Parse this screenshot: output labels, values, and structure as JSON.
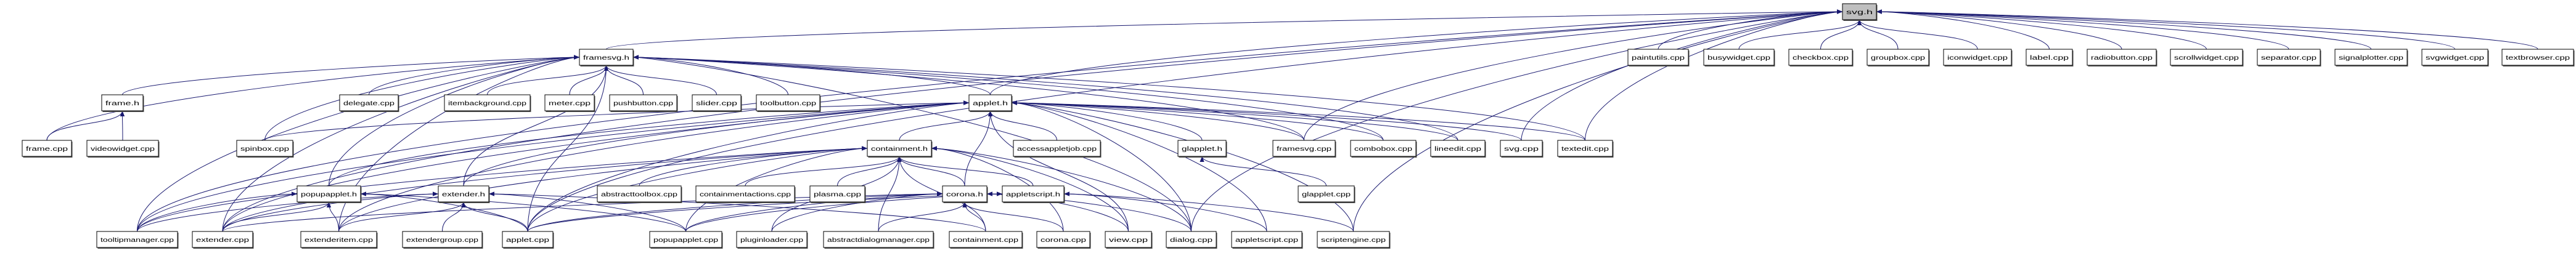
{
  "graph": {
    "type": "include-dependency-graph",
    "edge_color": "#191970",
    "highlight_fill": "#bfbfbf",
    "highlighted_node": "svg.h",
    "nodes": [
      "svg.h",
      "framesvg.h",
      "paintutils.cpp",
      "busywidget.cpp",
      "checkbox.cpp",
      "groupbox.cpp",
      "iconwidget.cpp",
      "label.cpp",
      "radiobutton.cpp",
      "scrollwidget.cpp",
      "separator.cpp",
      "signalplotter.cpp",
      "svgwidget.cpp",
      "textbrowser.cpp",
      "frame.h",
      "delegate.cpp",
      "itembackground.cpp",
      "meter.cpp",
      "pushbutton.cpp",
      "slider.cpp",
      "toolbutton.cpp",
      "applet.h",
      "frame.cpp",
      "videowidget.cpp",
      "spinbox.cpp",
      "containment.h",
      "accessappletjob.cpp",
      "glapplet.h",
      "framesvg.cpp",
      "combobox.cpp",
      "lineedit.cpp",
      "svg.cpp",
      "textedit.cpp",
      "popupapplet.h",
      "extender.h",
      "abstracttoolbox.cpp",
      "containmentactions.cpp",
      "plasma.cpp",
      "corona.h",
      "appletscript.h",
      "glapplet.cpp",
      "tooltipmanager.cpp",
      "extender.cpp",
      "extenderitem.cpp",
      "extendergroup.cpp",
      "applet.cpp",
      "popupapplet.cpp",
      "pluginloader.cpp",
      "abstractdialogmanager.cpp",
      "containment.cpp",
      "corona.cpp",
      "view.cpp",
      "dialog.cpp",
      "appletscript.cpp",
      "scriptengine.cpp"
    ],
    "edges": [
      [
        "framesvg.h",
        "svg.h"
      ],
      [
        "paintutils.cpp",
        "svg.h"
      ],
      [
        "busywidget.cpp",
        "svg.h"
      ],
      [
        "checkbox.cpp",
        "svg.h"
      ],
      [
        "groupbox.cpp",
        "svg.h"
      ],
      [
        "iconwidget.cpp",
        "svg.h"
      ],
      [
        "label.cpp",
        "svg.h"
      ],
      [
        "radiobutton.cpp",
        "svg.h"
      ],
      [
        "scrollwidget.cpp",
        "svg.h"
      ],
      [
        "separator.cpp",
        "svg.h"
      ],
      [
        "signalplotter.cpp",
        "svg.h"
      ],
      [
        "svgwidget.cpp",
        "svg.h"
      ],
      [
        "textbrowser.cpp",
        "svg.h"
      ],
      [
        "applet.h",
        "svg.h"
      ],
      [
        "svg.cpp",
        "svg.h"
      ],
      [
        "textedit.cpp",
        "svg.h"
      ],
      [
        "dialog.cpp",
        "svg.h"
      ],
      [
        "tooltipmanager.cpp",
        "svg.h"
      ],
      [
        "extender.cpp",
        "svg.h"
      ],
      [
        "applet.cpp",
        "svg.h"
      ],
      [
        "scriptengine.cpp",
        "svg.h"
      ],
      [
        "framesvg.cpp",
        "svg.h"
      ],
      [
        "frame.h",
        "framesvg.h"
      ],
      [
        "delegate.cpp",
        "framesvg.h"
      ],
      [
        "itembackground.cpp",
        "framesvg.h"
      ],
      [
        "meter.cpp",
        "framesvg.h"
      ],
      [
        "pushbutton.cpp",
        "framesvg.h"
      ],
      [
        "slider.cpp",
        "framesvg.h"
      ],
      [
        "toolbutton.cpp",
        "framesvg.h"
      ],
      [
        "frame.cpp",
        "framesvg.h"
      ],
      [
        "spinbox.cpp",
        "framesvg.h"
      ],
      [
        "tooltipmanager.cpp",
        "framesvg.h"
      ],
      [
        "extender.cpp",
        "framesvg.h"
      ],
      [
        "extenderitem.cpp",
        "framesvg.h"
      ],
      [
        "applet.h",
        "framesvg.h"
      ],
      [
        "framesvg.cpp",
        "framesvg.h"
      ],
      [
        "combobox.cpp",
        "framesvg.h"
      ],
      [
        "lineedit.cpp",
        "framesvg.h"
      ],
      [
        "textedit.cpp",
        "framesvg.h"
      ],
      [
        "applet.cpp",
        "framesvg.h"
      ],
      [
        "extender.h",
        "framesvg.h"
      ],
      [
        "popupapplet.h",
        "framesvg.h"
      ],
      [
        "dialog.cpp",
        "framesvg.h"
      ],
      [
        "frame.cpp",
        "frame.h"
      ],
      [
        "videowidget.cpp",
        "frame.h"
      ],
      [
        "containment.h",
        "applet.h"
      ],
      [
        "accessappletjob.cpp",
        "applet.h"
      ],
      [
        "glapplet.h",
        "applet.h"
      ],
      [
        "framesvg.cpp",
        "applet.h"
      ],
      [
        "combobox.cpp",
        "applet.h"
      ],
      [
        "lineedit.cpp",
        "applet.h"
      ],
      [
        "svg.cpp",
        "applet.h"
      ],
      [
        "textedit.cpp",
        "applet.h"
      ],
      [
        "corona.h",
        "applet.h"
      ],
      [
        "spinbox.cpp",
        "applet.h"
      ],
      [
        "tooltipmanager.cpp",
        "applet.h"
      ],
      [
        "extender.cpp",
        "applet.h"
      ],
      [
        "extenderitem.cpp",
        "applet.h"
      ],
      [
        "applet.cpp",
        "applet.h"
      ],
      [
        "popupapplet.h",
        "applet.h"
      ],
      [
        "extender.h",
        "applet.h"
      ],
      [
        "appletscript.cpp",
        "applet.h"
      ],
      [
        "scriptengine.cpp",
        "applet.h"
      ],
      [
        "view.cpp",
        "applet.h"
      ],
      [
        "dialog.cpp",
        "applet.h"
      ],
      [
        "glapplet.cpp",
        "glapplet.h"
      ],
      [
        "abstracttoolbox.cpp",
        "containment.h"
      ],
      [
        "containmentactions.cpp",
        "containment.h"
      ],
      [
        "plasma.cpp",
        "containment.h"
      ],
      [
        "corona.h",
        "containment.h"
      ],
      [
        "appletscript.h",
        "containment.h"
      ],
      [
        "containment.cpp",
        "containment.h"
      ],
      [
        "corona.cpp",
        "containment.h"
      ],
      [
        "view.cpp",
        "containment.h"
      ],
      [
        "dialog.cpp",
        "containment.h"
      ],
      [
        "applet.cpp",
        "containment.h"
      ],
      [
        "tooltipmanager.cpp",
        "containment.h"
      ],
      [
        "extender.cpp",
        "containment.h"
      ],
      [
        "extenderitem.cpp",
        "containment.h"
      ],
      [
        "pluginloader.cpp",
        "containment.h"
      ],
      [
        "abstractdialogmanager.cpp",
        "containment.h"
      ],
      [
        "popupapplet.cpp",
        "containment.h"
      ],
      [
        "tooltipmanager.cpp",
        "popupapplet.h"
      ],
      [
        "extender.cpp",
        "popupapplet.h"
      ],
      [
        "extenderitem.cpp",
        "popupapplet.h"
      ],
      [
        "applet.cpp",
        "popupapplet.h"
      ],
      [
        "popupapplet.cpp",
        "popupapplet.h"
      ],
      [
        "tooltipmanager.cpp",
        "extender.h"
      ],
      [
        "extender.cpp",
        "extender.h"
      ],
      [
        "extenderitem.cpp",
        "extender.h"
      ],
      [
        "extendergroup.cpp",
        "extender.h"
      ],
      [
        "applet.cpp",
        "extender.h"
      ],
      [
        "popupapplet.cpp",
        "extender.h"
      ],
      [
        "containment.cpp",
        "extender.h"
      ],
      [
        "applet.cpp",
        "corona.h"
      ],
      [
        "extender.cpp",
        "corona.h"
      ],
      [
        "popupapplet.cpp",
        "corona.h"
      ],
      [
        "pluginloader.cpp",
        "corona.h"
      ],
      [
        "abstractdialogmanager.cpp",
        "corona.h"
      ],
      [
        "containment.cpp",
        "corona.h"
      ],
      [
        "corona.cpp",
        "corona.h"
      ],
      [
        "view.cpp",
        "corona.h"
      ],
      [
        "dialog.cpp",
        "corona.h"
      ],
      [
        "appletscript.cpp",
        "appletscript.h"
      ],
      [
        "scriptengine.cpp",
        "appletscript.h"
      ],
      [
        "applet.cpp",
        "appletscript.h"
      ],
      [
        "popupapplet.cpp",
        "appletscript.h"
      ]
    ]
  }
}
